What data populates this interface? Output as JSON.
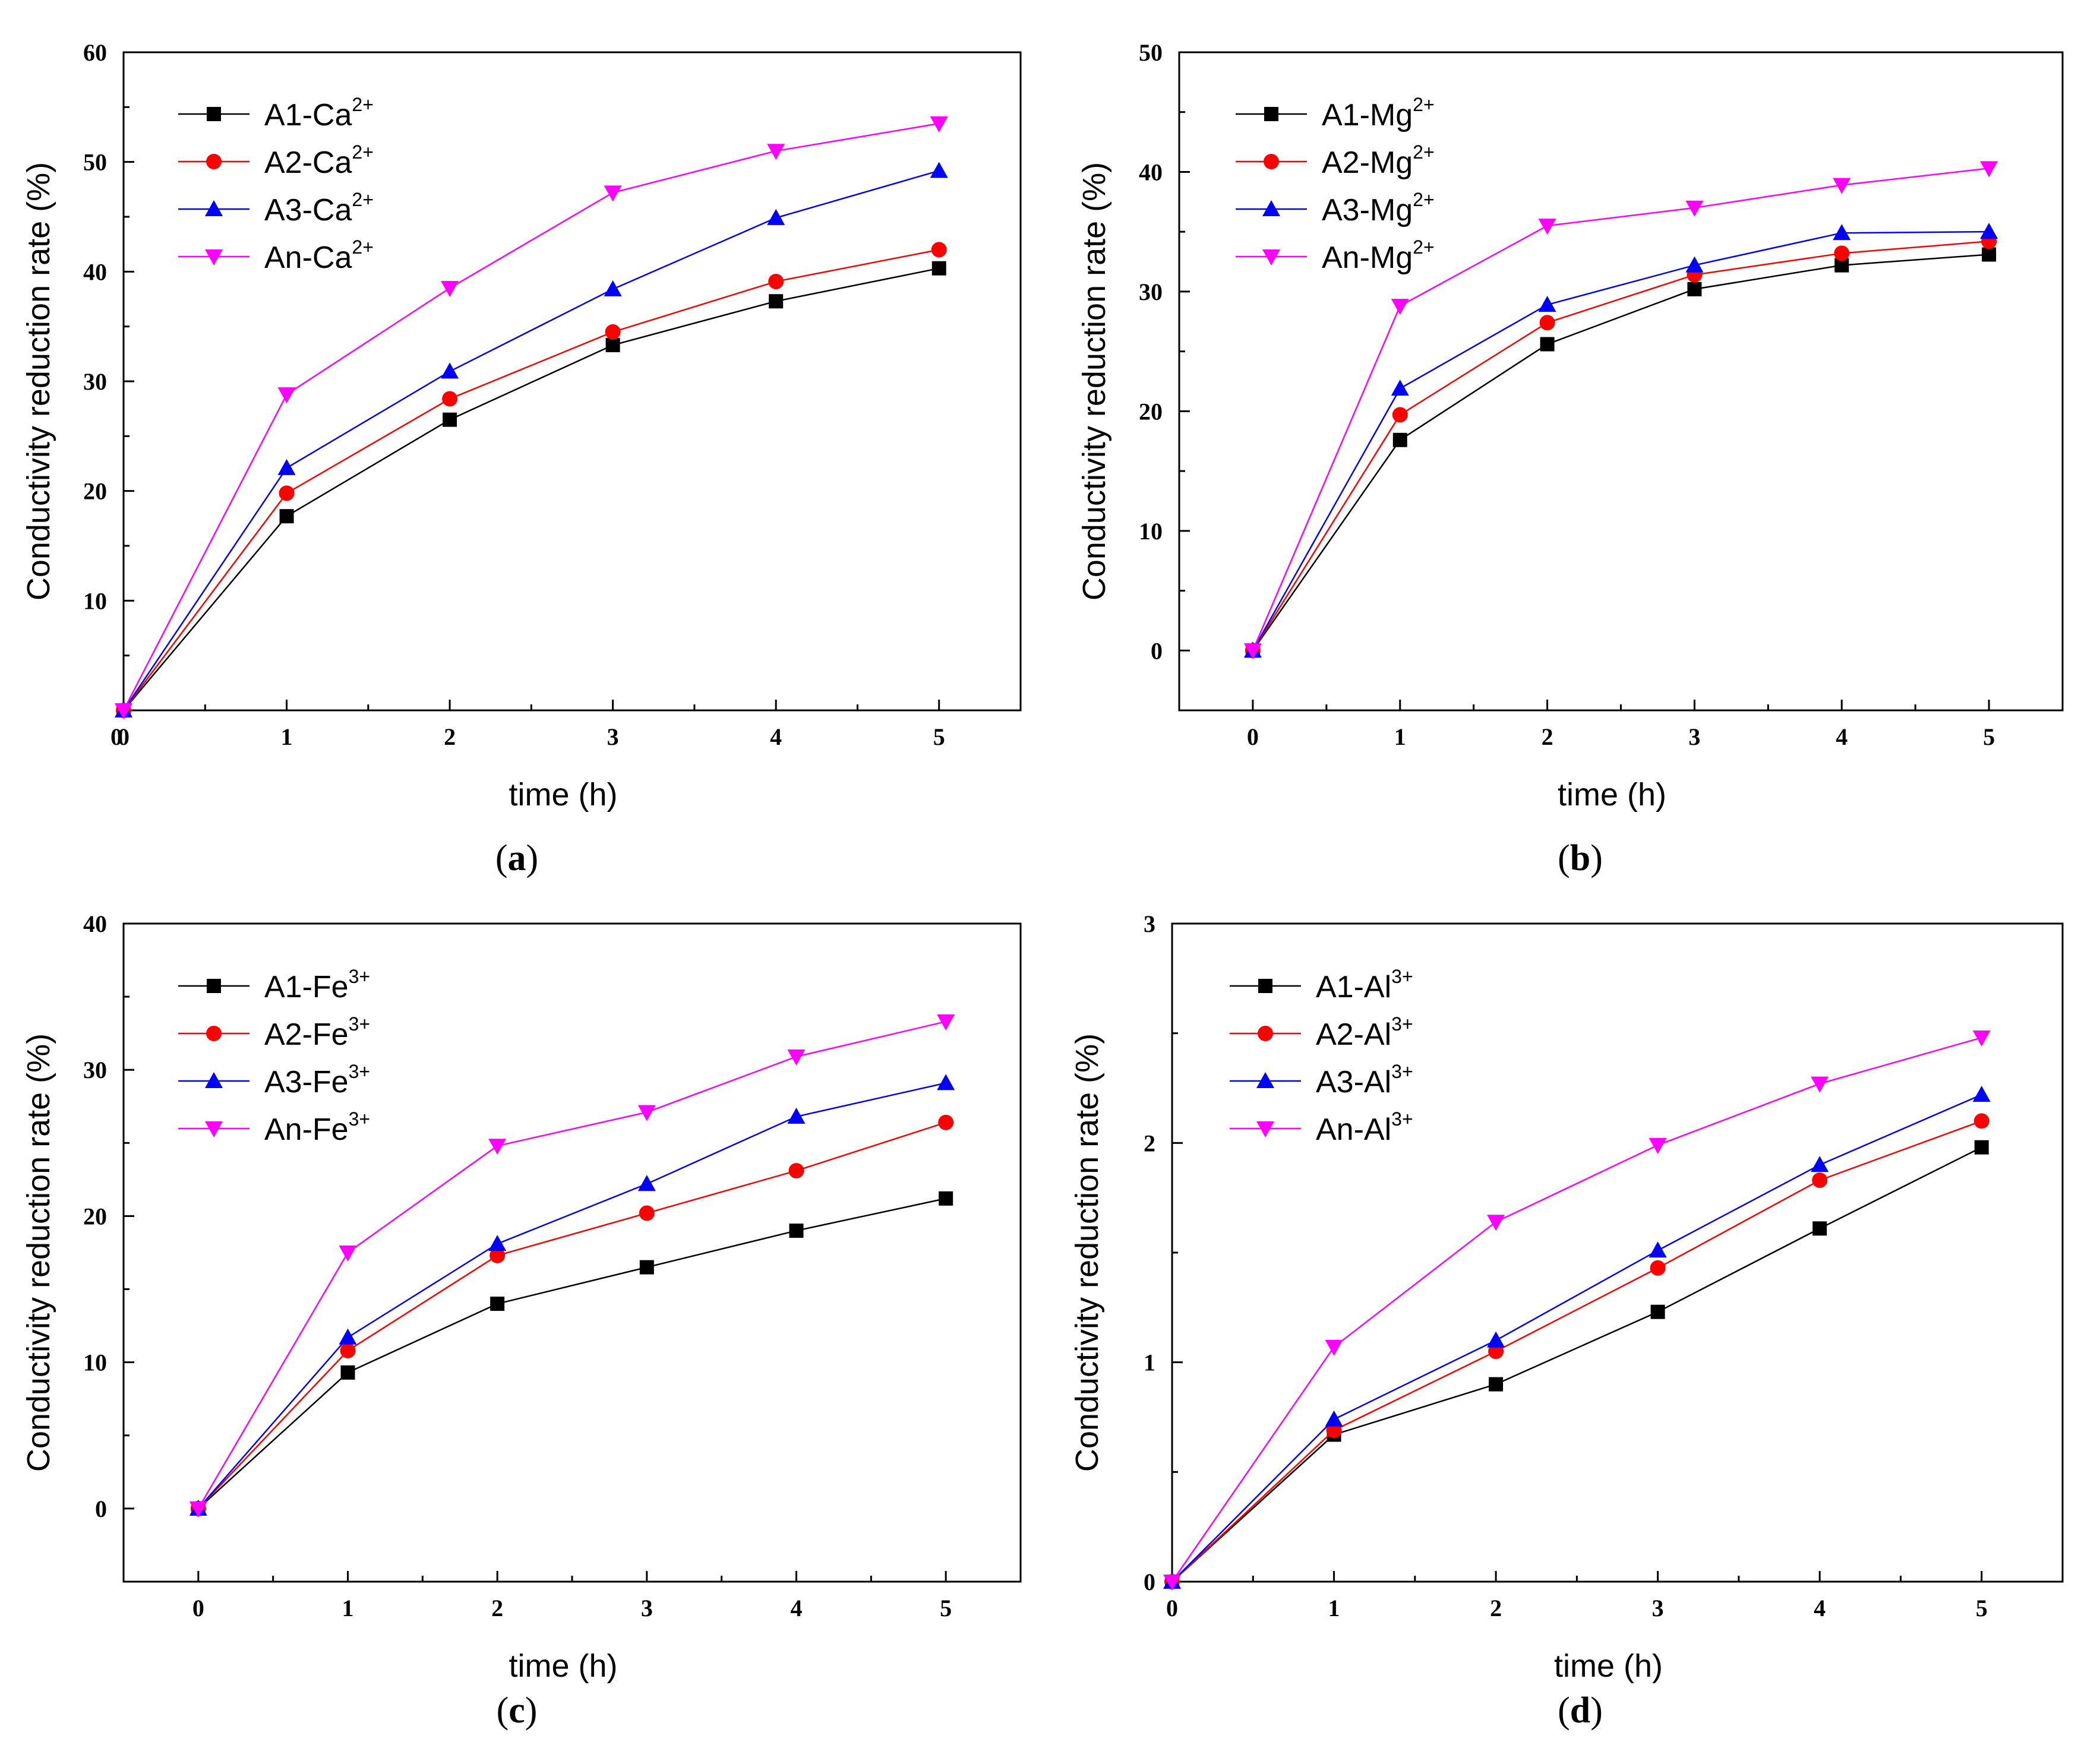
{
  "figure": {
    "series_colors": [
      "#000000",
      "#ff0000",
      "#0000ff",
      "#ff00ff"
    ],
    "marker_shapes": [
      "square",
      "circle",
      "triangle-up",
      "triangle-down"
    ]
  },
  "chart_data": [
    {
      "type": "line",
      "panel": "a",
      "caption_letter": "a",
      "xlabel": "time (h)",
      "ylabel": "Conductivity reduction rate (%)",
      "xlim": [
        0,
        5.5
      ],
      "ylim": [
        0,
        60
      ],
      "xticks": [
        0,
        1,
        2,
        3,
        4,
        5
      ],
      "yticks": [
        10,
        20,
        30,
        40,
        50,
        60
      ],
      "ytick_labels": [
        "10",
        "20",
        "30",
        "40",
        "50",
        "60"
      ],
      "origin_label": "0",
      "x": [
        0,
        1,
        2,
        3,
        4,
        5
      ],
      "series": [
        {
          "name": "A1-Ca",
          "superscript": "2+",
          "values": [
            0,
            17.7,
            26.5,
            33.3,
            37.3,
            40.3
          ]
        },
        {
          "name": "A2-Ca",
          "superscript": "2+",
          "values": [
            0,
            19.8,
            28.4,
            34.5,
            39.1,
            42.0
          ]
        },
        {
          "name": "A3-Ca",
          "superscript": "2+",
          "values": [
            0,
            22.1,
            30.9,
            38.4,
            44.9,
            49.2
          ]
        },
        {
          "name": "An-Ca",
          "superscript": "2+",
          "values": [
            0,
            28.8,
            38.5,
            47.2,
            51.0,
            53.5
          ]
        }
      ]
    },
    {
      "type": "line",
      "panel": "b",
      "caption_letter": "b",
      "xlabel": "time (h)",
      "ylabel": "Conductivity reduction rate (%)",
      "xlim": [
        -0.5,
        5.5
      ],
      "ylim": [
        -5,
        50
      ],
      "xticks": [
        0,
        1,
        2,
        3,
        4,
        5
      ],
      "yticks": [
        0,
        10,
        20,
        30,
        40,
        50
      ],
      "ytick_labels": [
        "0",
        "10",
        "20",
        "30",
        "40",
        "50"
      ],
      "x": [
        0,
        1,
        2,
        3,
        4,
        5
      ],
      "series": [
        {
          "name": "A1-Mg",
          "superscript": "2+",
          "values": [
            0,
            17.6,
            25.6,
            30.2,
            32.2,
            33.1
          ]
        },
        {
          "name": "A2-Mg",
          "superscript": "2+",
          "values": [
            0,
            19.7,
            27.4,
            31.4,
            33.2,
            34.2
          ]
        },
        {
          "name": "A3-Mg",
          "superscript": "2+",
          "values": [
            0,
            21.9,
            28.9,
            32.2,
            34.9,
            35.0
          ]
        },
        {
          "name": "An-Mg",
          "superscript": "2+",
          "values": [
            0,
            28.8,
            35.5,
            37.0,
            38.9,
            40.3
          ]
        }
      ]
    },
    {
      "type": "line",
      "panel": "c",
      "caption_letter": "c",
      "xlabel": "time (h)",
      "ylabel": "Conductivity reduction rate (%)",
      "xlim": [
        -0.5,
        5.5
      ],
      "ylim": [
        -5,
        40
      ],
      "xticks": [
        0,
        1,
        2,
        3,
        4,
        5
      ],
      "yticks": [
        0,
        10,
        20,
        30,
        40
      ],
      "ytick_labels": [
        "0",
        "10",
        "20",
        "30",
        "40"
      ],
      "x": [
        0,
        1,
        2,
        3,
        4,
        5
      ],
      "series": [
        {
          "name": "A1-Fe",
          "superscript": "3+",
          "values": [
            0,
            9.3,
            14.0,
            16.5,
            19.0,
            21.2
          ]
        },
        {
          "name": "A2-Fe",
          "superscript": "3+",
          "values": [
            0,
            10.8,
            17.3,
            20.2,
            23.1,
            26.4
          ]
        },
        {
          "name": "A3-Fe",
          "superscript": "3+",
          "values": [
            0,
            11.7,
            18.1,
            22.2,
            26.8,
            29.1
          ]
        },
        {
          "name": "An-Fe",
          "superscript": "3+",
          "values": [
            0,
            17.5,
            24.8,
            27.1,
            30.9,
            33.3
          ]
        }
      ]
    },
    {
      "type": "line",
      "panel": "d",
      "caption_letter": "d",
      "xlabel": "time (h)",
      "ylabel": "Conductivity reduction rate (%)",
      "xlim": [
        0,
        5.5
      ],
      "ylim": [
        0,
        3
      ],
      "xticks": [
        0,
        1,
        2,
        3,
        4,
        5
      ],
      "yticks": [
        0,
        1,
        2,
        3
      ],
      "ytick_labels": [
        "0",
        "1",
        "2",
        "3"
      ],
      "x": [
        0,
        1,
        2,
        3,
        4,
        5
      ],
      "series": [
        {
          "name": "A1-Al",
          "superscript": "3+",
          "values": [
            0,
            0.67,
            0.9,
            1.23,
            1.61,
            1.98
          ]
        },
        {
          "name": "A2-Al",
          "superscript": "3+",
          "values": [
            0,
            0.69,
            1.05,
            1.43,
            1.83,
            2.1
          ]
        },
        {
          "name": "A3-Al",
          "superscript": "3+",
          "values": [
            0,
            0.74,
            1.1,
            1.51,
            1.9,
            2.22
          ]
        },
        {
          "name": "An-Al",
          "superscript": "3+",
          "values": [
            0,
            1.07,
            1.64,
            1.99,
            2.27,
            2.48
          ]
        }
      ]
    }
  ]
}
